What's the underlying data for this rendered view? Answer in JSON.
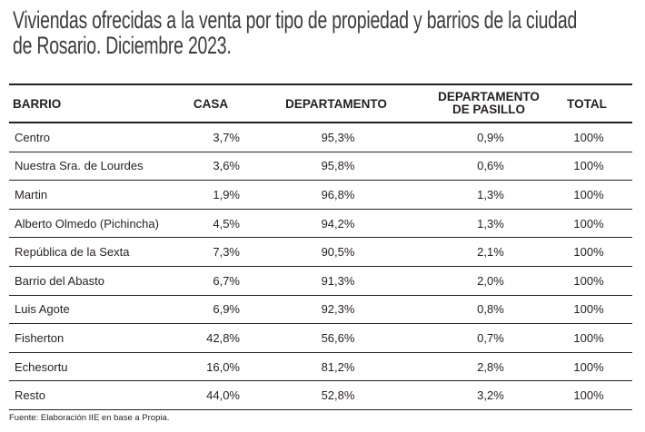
{
  "title": {
    "line1": "Viviendas ofrecidas a la venta por tipo de propiedad y barrios de la ciudad",
    "line2": "de Rosario. Diciembre 2023."
  },
  "headers": {
    "barrio": "BARRIO",
    "casa": "CASA",
    "departamento": "DEPARTAMENTO",
    "pasillo_line1": "DEPARTAMENTO",
    "pasillo_line2": "DE PASILLO",
    "total": "TOTAL"
  },
  "rows": [
    {
      "barrio": "Centro",
      "casa": "3,7%",
      "departamento": "95,3%",
      "pasillo": "0,9%",
      "total": "100%"
    },
    {
      "barrio": "Nuestra Sra. de Lourdes",
      "casa": "3,6%",
      "departamento": "95,8%",
      "pasillo": "0,6%",
      "total": "100%"
    },
    {
      "barrio": "Martin",
      "casa": "1,9%",
      "departamento": "96,8%",
      "pasillo": "1,3%",
      "total": "100%"
    },
    {
      "barrio": "Alberto Olmedo (Pichincha)",
      "casa": "4,5%",
      "departamento": "94,2%",
      "pasillo": "1,3%",
      "total": "100%"
    },
    {
      "barrio": "República de la Sexta",
      "casa": "7,3%",
      "departamento": "90,5%",
      "pasillo": "2,1%",
      "total": "100%"
    },
    {
      "barrio": "Barrio del Abasto",
      "casa": "6,7%",
      "departamento": "91,3%",
      "pasillo": "2,0%",
      "total": "100%"
    },
    {
      "barrio": "Luis Agote",
      "casa": "6,9%",
      "departamento": "92,3%",
      "pasillo": "0,8%",
      "total": "100%"
    },
    {
      "barrio": "Fisherton",
      "casa": "42,8%",
      "departamento": "56,6%",
      "pasillo": "0,7%",
      "total": "100%"
    },
    {
      "barrio": "Echesortu",
      "casa": "16,0%",
      "departamento": "81,2%",
      "pasillo": "2,8%",
      "total": "100%"
    },
    {
      "barrio": "Resto",
      "casa": "44,0%",
      "departamento": "52,8%",
      "pasillo": "3,2%",
      "total": "100%"
    }
  ],
  "source": "Fuente: Elaboración IIE en base a Propia."
}
